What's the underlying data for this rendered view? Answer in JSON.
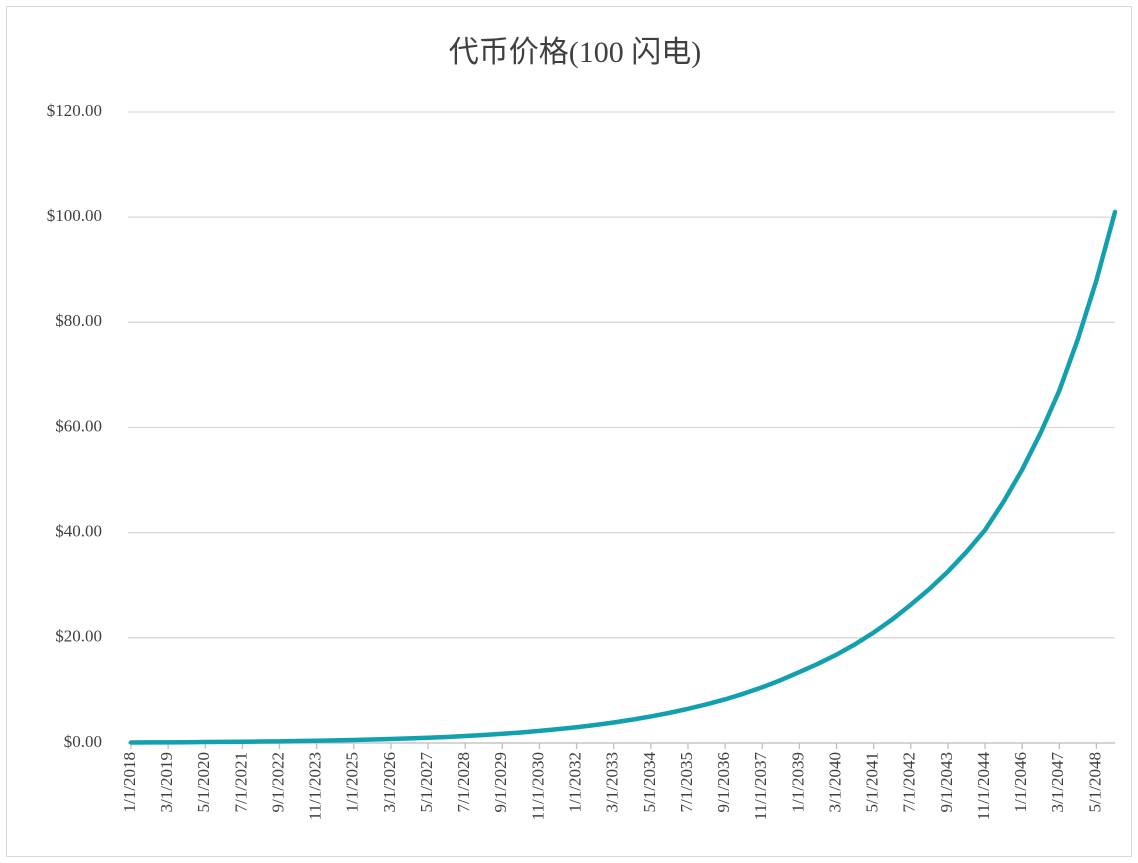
{
  "chart_data": {
    "type": "line",
    "title": "代币价格(100 闪电)",
    "categories": [
      "1/1/2018",
      null,
      "3/1/2019",
      null,
      "5/1/2020",
      null,
      "7/1/2021",
      null,
      "9/1/2022",
      null,
      "11/1/2023",
      null,
      "1/1/2025",
      null,
      "3/1/2026",
      null,
      "5/1/2027",
      null,
      "7/1/2028",
      null,
      "9/1/2029",
      null,
      "11/1/2030",
      null,
      "1/1/2032",
      null,
      "3/1/2033",
      null,
      "5/1/2034",
      null,
      "7/1/2035",
      null,
      "9/1/2036",
      null,
      "11/1/2037",
      null,
      "1/1/2039",
      null,
      "3/1/2040",
      null,
      "5/1/2041",
      null,
      "7/1/2042",
      null,
      "9/1/2043",
      null,
      "11/1/2044",
      null,
      "1/1/2046",
      null,
      "3/1/2047",
      null,
      "5/1/2048",
      null
    ],
    "series": [
      {
        "name": "代币价格",
        "color": "#12a0ae",
        "values": [
          0.1,
          0.11,
          0.13,
          0.15,
          0.18,
          0.21,
          0.24,
          0.28,
          0.32,
          0.37,
          0.43,
          0.5,
          0.57,
          0.66,
          0.76,
          0.87,
          1.0,
          1.15,
          1.33,
          1.53,
          1.75,
          2.0,
          2.3,
          2.63,
          3.0,
          3.42,
          3.9,
          4.44,
          5.05,
          5.73,
          6.5,
          7.35,
          8.3,
          9.38,
          10.6,
          11.96,
          13.5,
          15.06,
          16.8,
          18.78,
          21.0,
          23.5,
          26.3,
          29.28,
          32.6,
          36.34,
          40.5,
          45.9,
          52.0,
          59.03,
          67.0,
          76.8,
          88.0,
          101.0
        ]
      }
    ],
    "ylim": [
      0,
      120
    ],
    "yticks": [
      {
        "value": 0,
        "label": "$0.00"
      },
      {
        "value": 20,
        "label": "$20.00"
      },
      {
        "value": 40,
        "label": "$40.00"
      },
      {
        "value": 60,
        "label": "$60.00"
      },
      {
        "value": 80,
        "label": "$80.00"
      },
      {
        "value": 100,
        "label": "$100.00"
      },
      {
        "value": 120,
        "label": "$120.00"
      }
    ],
    "grid": true
  }
}
